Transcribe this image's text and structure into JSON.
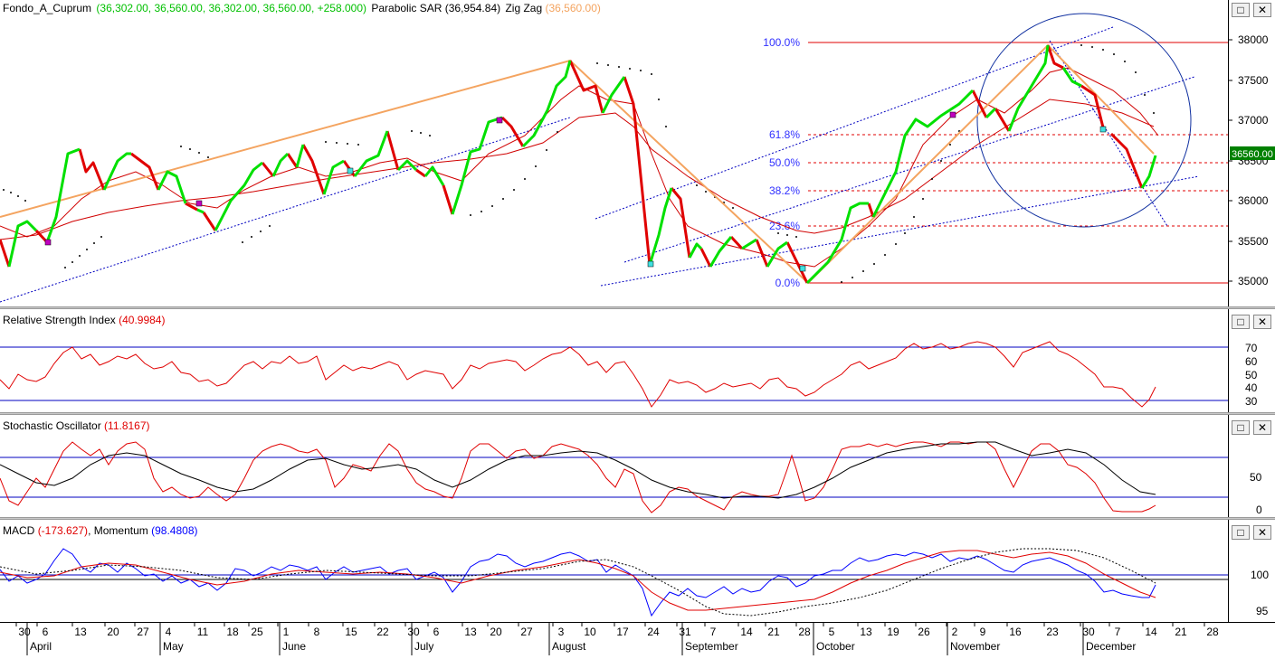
{
  "price_pane": {
    "symbol": "Fondo_A_Cuprum",
    "ohlc_text": "(36,302.00, 36,560.00, 36,302.00, 36,560.00, +258.000)",
    "sar_label": "Parabolic SAR",
    "sar_value": "(36,954.84)",
    "zigzag_label": "Zig Zag",
    "zigzag_value": "(36,560.00)",
    "last_price_tag": "36560.00",
    "y_ticks": [
      "38000",
      "37500",
      "37000",
      "36500",
      "36000",
      "35500",
      "35000"
    ],
    "fib_levels": [
      "100.0%",
      "61.8%",
      "50.0%",
      "38.2%",
      "23.6%",
      "0.0%"
    ]
  },
  "rsi_pane": {
    "label": "Relative Strength Index",
    "value": "(40.9984)",
    "y_ticks": [
      "70",
      "60",
      "50",
      "40",
      "30"
    ]
  },
  "stoch_pane": {
    "label": "Stochastic Oscillator",
    "value": "(11.8167)",
    "y_ticks": [
      "50",
      "0"
    ]
  },
  "macd_pane": {
    "label": "MACD",
    "value": "(-173.627)",
    "mom_label": "Momentum",
    "mom_value": "(98.4808)",
    "y_ticks": [
      "100",
      "95"
    ]
  },
  "window_buttons": {
    "restore": "□",
    "close": "✕"
  },
  "x_axis": {
    "days": [
      "30",
      "6",
      "13",
      "20",
      "27",
      "4",
      "11",
      "18",
      "25",
      "1",
      "8",
      "15",
      "22",
      "30",
      "6",
      "13",
      "20",
      "27",
      "3",
      "10",
      "17",
      "24",
      "31",
      "7",
      "14",
      "21",
      "28",
      "5",
      "13",
      "19",
      "26",
      "2",
      "9",
      "16",
      "23",
      "30",
      "7",
      "14",
      "21",
      "28"
    ],
    "months": [
      "April",
      "May",
      "June",
      "July",
      "August",
      "September",
      "October",
      "November",
      "December"
    ]
  },
  "colors": {
    "up": "#00e000",
    "down": "#e00000",
    "zigzag": "#f4a460",
    "text_green": "#00c000",
    "text_red": "#e00000",
    "text_orange": "#f4a460",
    "text_blue": "#0000ff",
    "fib": "#e00000",
    "channel": "#0000c0",
    "text_fib": "#3030ff"
  }
}
